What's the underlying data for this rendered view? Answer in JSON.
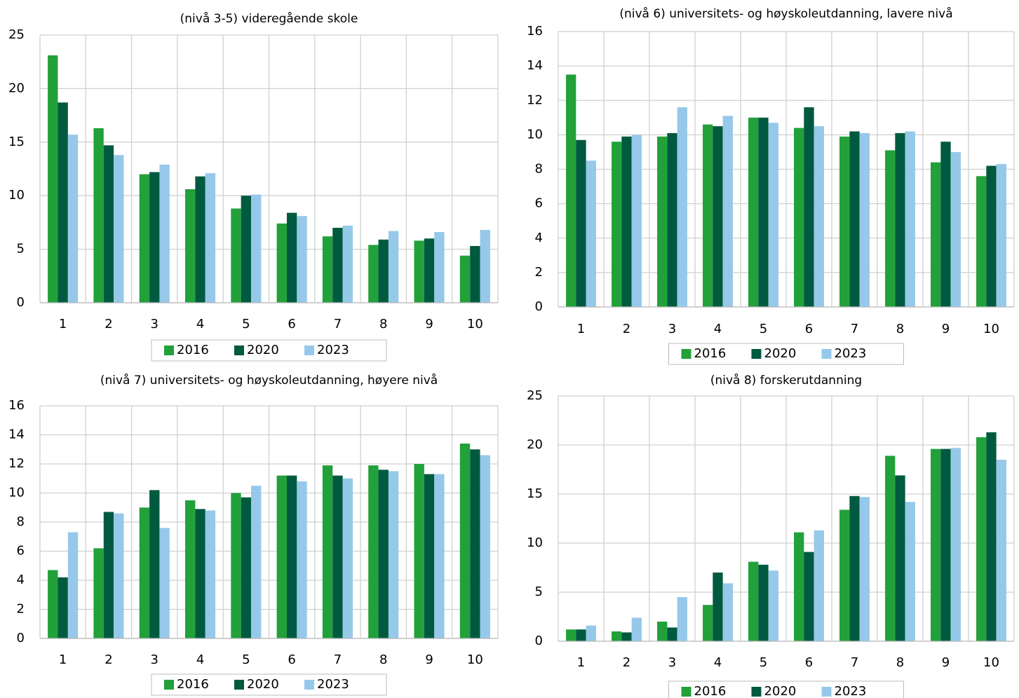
{
  "chart_data": [
    {
      "type": "bar",
      "title": "(nivå 3-5) videregående skole",
      "categories": [
        "1",
        "2",
        "3",
        "4",
        "5",
        "6",
        "7",
        "8",
        "9",
        "10"
      ],
      "series": [
        {
          "name": "2016",
          "color": "#22a03a",
          "values": [
            23.1,
            16.3,
            12.0,
            10.6,
            8.8,
            7.4,
            6.2,
            5.4,
            5.8,
            4.4
          ]
        },
        {
          "name": "2020",
          "color": "#005a40",
          "values": [
            18.7,
            14.7,
            12.2,
            11.8,
            10.0,
            8.4,
            7.0,
            5.9,
            6.0,
            5.3
          ]
        },
        {
          "name": "2023",
          "color": "#96c8ea",
          "values": [
            15.7,
            13.8,
            12.9,
            12.1,
            10.1,
            8.1,
            7.2,
            6.7,
            6.6,
            6.8
          ]
        }
      ],
      "ylim": [
        0,
        25
      ],
      "yticks": [
        0,
        5,
        10,
        15,
        20,
        25
      ],
      "grid": true
    },
    {
      "type": "bar",
      "title": "(nivå 6) universitets- og høyskoleutdanning, lavere nivå",
      "categories": [
        "1",
        "2",
        "3",
        "4",
        "5",
        "6",
        "7",
        "8",
        "9",
        "10"
      ],
      "series": [
        {
          "name": "2016",
          "color": "#22a03a",
          "values": [
            13.5,
            9.6,
            9.9,
            10.6,
            11.0,
            10.4,
            9.9,
            9.1,
            8.4,
            7.6
          ]
        },
        {
          "name": "2020",
          "color": "#005a40",
          "values": [
            9.7,
            9.9,
            10.1,
            10.5,
            11.0,
            11.6,
            10.2,
            10.1,
            9.6,
            8.2
          ]
        },
        {
          "name": "2023",
          "color": "#96c8ea",
          "values": [
            8.5,
            10.0,
            11.6,
            11.1,
            10.7,
            10.5,
            10.1,
            10.2,
            9.0,
            8.3
          ]
        }
      ],
      "ylim": [
        0,
        16
      ],
      "yticks": [
        0,
        2,
        4,
        6,
        8,
        10,
        12,
        14,
        16
      ],
      "grid": true
    },
    {
      "type": "bar",
      "title": "(nivå 7) universitets- og høyskoleutdanning, høyere nivå",
      "categories": [
        "1",
        "2",
        "3",
        "4",
        "5",
        "6",
        "7",
        "8",
        "9",
        "10"
      ],
      "series": [
        {
          "name": "2016",
          "color": "#22a03a",
          "values": [
            4.7,
            6.2,
            9.0,
            9.5,
            10.0,
            11.2,
            11.9,
            11.9,
            12.0,
            13.4
          ]
        },
        {
          "name": "2020",
          "color": "#005a40",
          "values": [
            4.2,
            8.7,
            10.2,
            8.9,
            9.7,
            11.2,
            11.2,
            11.6,
            11.3,
            13.0
          ]
        },
        {
          "name": "2023",
          "color": "#96c8ea",
          "values": [
            7.3,
            8.6,
            7.6,
            8.8,
            10.5,
            10.8,
            11.0,
            11.5,
            11.3,
            12.6
          ]
        }
      ],
      "ylim": [
        0,
        16
      ],
      "yticks": [
        0,
        2,
        4,
        6,
        8,
        10,
        12,
        14,
        16
      ],
      "grid": true
    },
    {
      "type": "bar",
      "title": "(nivå 8) forskerutdanning",
      "categories": [
        "1",
        "2",
        "3",
        "4",
        "5",
        "6",
        "7",
        "8",
        "9",
        "10"
      ],
      "series": [
        {
          "name": "2016",
          "color": "#22a03a",
          "values": [
            1.2,
            1.0,
            2.0,
            3.7,
            8.1,
            11.1,
            13.4,
            18.9,
            19.6,
            20.8
          ]
        },
        {
          "name": "2020",
          "color": "#005a40",
          "values": [
            1.2,
            0.9,
            1.4,
            7.0,
            7.8,
            9.1,
            14.8,
            16.9,
            19.6,
            21.3
          ]
        },
        {
          "name": "2023",
          "color": "#96c8ea",
          "values": [
            1.6,
            2.4,
            4.5,
            5.9,
            7.2,
            11.3,
            14.7,
            14.2,
            19.7,
            18.5
          ]
        }
      ],
      "ylim": [
        0,
        25
      ],
      "yticks": [
        0,
        5,
        10,
        15,
        20,
        25
      ],
      "grid": true
    }
  ]
}
